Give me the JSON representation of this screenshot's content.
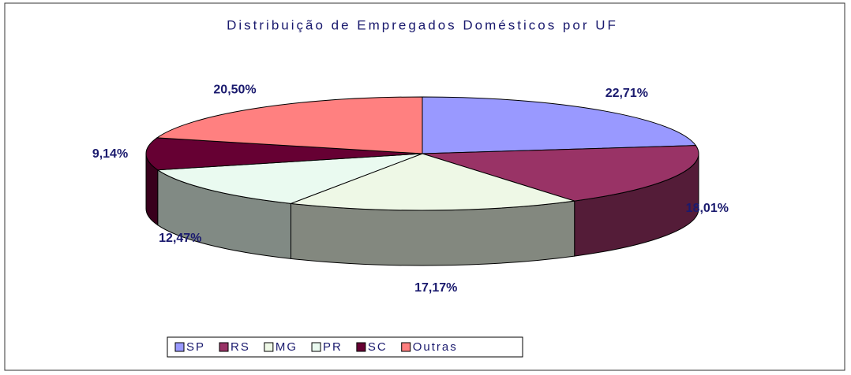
{
  "chart_data": {
    "type": "pie",
    "title": "Distribuição de Empregados Domésticos por UF",
    "categories": [
      "SP",
      "RS",
      "MG",
      "PR",
      "SC",
      "Outras"
    ],
    "values": [
      22.71,
      18.01,
      17.17,
      12.47,
      9.14,
      20.5
    ],
    "value_labels": [
      "22,71%",
      "18,01%",
      "17,17%",
      "12,47%",
      "9,14%",
      "20,50%"
    ],
    "colors": [
      "#9999ff",
      "#993366",
      "#eef8e6",
      "#eafaf0",
      "#660033",
      "#ff8080"
    ],
    "legend": "bottom"
  }
}
